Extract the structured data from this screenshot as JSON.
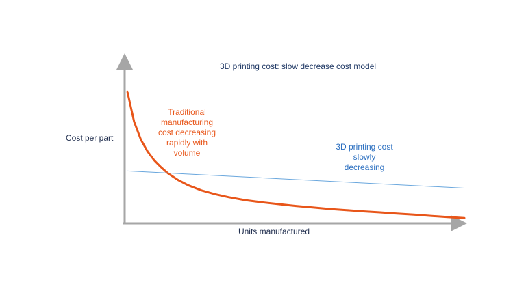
{
  "chart_data": {
    "type": "line",
    "title": "3D printing  cost: slow decrease cost model",
    "xlabel": "Units manufactured",
    "ylabel": "Cost per part",
    "xlim": [
      0,
      100
    ],
    "ylim": [
      0,
      100
    ],
    "grid": false,
    "series": [
      {
        "key": "traditional",
        "color": "#e8561a",
        "x": [
          0,
          2,
          4,
          6,
          8,
          10,
          12,
          15,
          18,
          22,
          26,
          30,
          35,
          40,
          45,
          50,
          55,
          60,
          65,
          70,
          75,
          80,
          85,
          90,
          95,
          100
        ],
        "y": [
          88,
          68,
          56,
          48,
          42,
          37.5,
          33.5,
          29,
          25.5,
          22,
          19.5,
          17.5,
          15.5,
          14,
          12.8,
          11.6,
          10.6,
          9.6,
          8.8,
          8,
          7.3,
          6.5,
          5.8,
          5,
          4.2,
          3.5
        ]
      },
      {
        "key": "printing",
        "color": "#6aa7dd",
        "x": [
          0,
          100
        ],
        "y": [
          35,
          23.5
        ]
      }
    ],
    "annotations": [
      {
        "key": "traditional",
        "lines": [
          "Traditional",
          "manufacturing",
          "cost decreasing",
          "rapidly with",
          "volume"
        ]
      },
      {
        "key": "printing",
        "lines": [
          "3D printing cost",
          "slowly",
          "decreasing"
        ]
      }
    ]
  }
}
